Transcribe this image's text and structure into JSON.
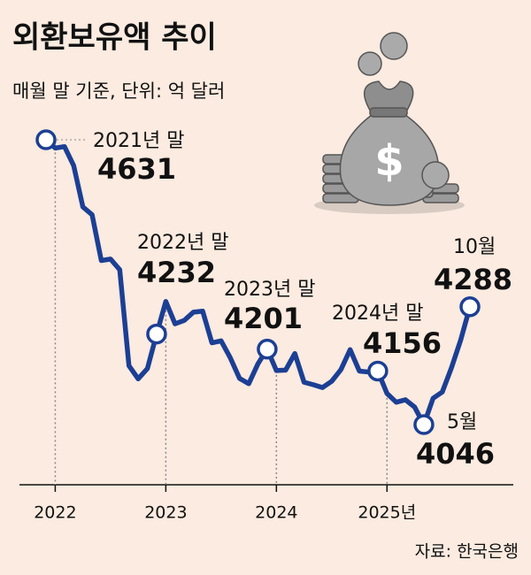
{
  "chart_data": {
    "type": "line",
    "title": "외환보유액 추이",
    "subtitle": "매월 말 기준, 단위: 억 달러",
    "source": "자료: 한국은행",
    "color": "#1c3f94",
    "x": [
      "2021-12",
      "2022-01",
      "2022-02",
      "2022-03",
      "2022-04",
      "2022-05",
      "2022-06",
      "2022-07",
      "2022-08",
      "2022-09",
      "2022-10",
      "2022-11",
      "2022-12",
      "2023-01",
      "2023-02",
      "2023-03",
      "2023-04",
      "2023-05",
      "2023-06",
      "2023-07",
      "2023-08",
      "2023-09",
      "2023-10",
      "2023-11",
      "2023-12",
      "2024-01",
      "2024-02",
      "2024-03",
      "2024-04",
      "2024-05",
      "2024-06",
      "2024-07",
      "2024-08",
      "2024-09",
      "2024-10",
      "2024-11",
      "2024-12",
      "2025-01",
      "2025-02",
      "2025-03",
      "2025-04",
      "2025-05",
      "2025-06",
      "2025-07",
      "2025-08",
      "2025-09",
      "2025-10"
    ],
    "values": [
      4631,
      4614,
      4617,
      4578,
      4493,
      4477,
      4383,
      4386,
      4364,
      4167,
      4140,
      4161,
      4232,
      4299,
      4253,
      4260,
      4277,
      4279,
      4214,
      4218,
      4183,
      4141,
      4130,
      4171,
      4201,
      4157,
      4158,
      4192,
      4133,
      4128,
      4122,
      4135,
      4159,
      4200,
      4156,
      4154,
      4156,
      4110,
      4092,
      4097,
      4082,
      4046,
      4100,
      4113,
      4163,
      4220,
      4288
    ],
    "xlim": [
      "2021-12",
      "2025-10"
    ],
    "xticks": [
      {
        "value": "2022-01",
        "label": "2022"
      },
      {
        "value": "2023-01",
        "label": "2023"
      },
      {
        "value": "2024-01",
        "label": "2024"
      },
      {
        "value": "2025-01",
        "label": "2025년"
      }
    ],
    "annotations": [
      {
        "x": "2021-12",
        "label": "2021년 말"
      },
      {
        "x": "2022-12",
        "label": "2022년 말"
      },
      {
        "x": "2023-12",
        "label": "2023년 말"
      },
      {
        "x": "2024-12",
        "label": "2024년 말"
      },
      {
        "x": "2025-05",
        "label": "5월"
      },
      {
        "x": "2025-10",
        "label": "10월"
      }
    ]
  }
}
